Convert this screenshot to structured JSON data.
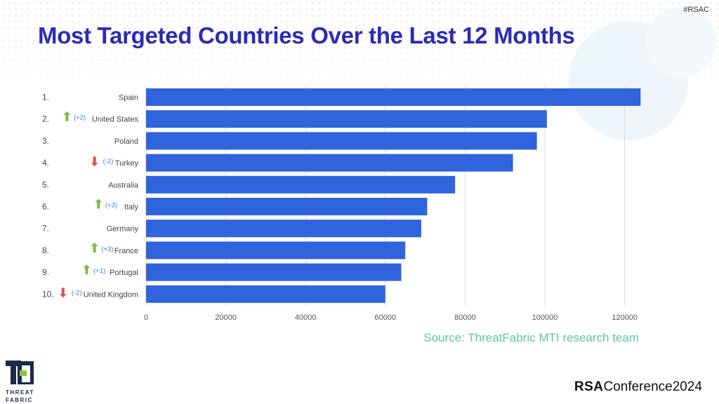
{
  "header": {
    "hashtag": "#RSAC"
  },
  "slide": {
    "title": "Most Targeted Countries Over the Last 12 Months"
  },
  "source": "Source: ThreatFabric MTI research team",
  "logos": {
    "threatfabric": [
      "THREAT",
      "FABRIC"
    ],
    "rsa": {
      "bold": "RSA",
      "rest": "Conference",
      "year": "2024"
    }
  },
  "colors": {
    "title": "#2b2bb5",
    "bar": "#2f64dc",
    "up_arrow": "#7dbd3a",
    "down_arrow": "#d9534f",
    "change_text": "#2e7fd8",
    "source": "#5cc3a8"
  },
  "chart_data": {
    "type": "bar",
    "orientation": "horizontal",
    "categories": [
      "Spain",
      "United States",
      "Poland",
      "Turkey",
      "Australia",
      "Italy",
      "Germany",
      "France",
      "Portugal",
      "United Kingdom"
    ],
    "ranks": [
      "1.",
      "2.",
      "3.",
      "4.",
      "5.",
      "6.",
      "7.",
      "8.",
      "9.",
      "10."
    ],
    "changes": [
      {
        "dir": "",
        "text": ""
      },
      {
        "dir": "up",
        "text": "(+2)"
      },
      {
        "dir": "",
        "text": ""
      },
      {
        "dir": "down",
        "text": "(-2)"
      },
      {
        "dir": "",
        "text": ""
      },
      {
        "dir": "up",
        "text": "(+3)"
      },
      {
        "dir": "",
        "text": ""
      },
      {
        "dir": "up",
        "text": "(+3)"
      },
      {
        "dir": "up",
        "text": "(+1)"
      },
      {
        "dir": "down",
        "text": "(-2)"
      }
    ],
    "values": [
      124000,
      100500,
      98000,
      92000,
      77500,
      70500,
      69000,
      65000,
      64000,
      60000
    ],
    "xlim": [
      0,
      125000
    ],
    "xticks": [
      0,
      20000,
      40000,
      60000,
      80000,
      100000,
      120000
    ],
    "grid": true,
    "title": "",
    "xlabel": "",
    "ylabel": ""
  }
}
